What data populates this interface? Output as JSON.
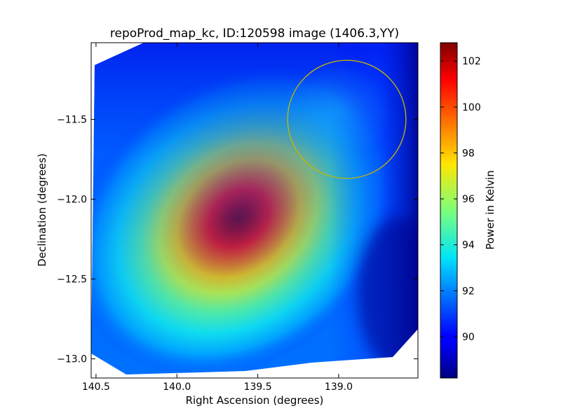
{
  "chart_data": {
    "type": "heatmap",
    "title": "repoProd_map_kc, ID:120598 image (1406.3,YY)",
    "xlabel": "Right Ascension (degrees)",
    "ylabel": "Declination (degrees)",
    "xlim": [
      140.53,
      138.51
    ],
    "ylim": [
      -13.12,
      -11.02
    ],
    "x_ticks": [
      {
        "value": 140.5,
        "label": "140.5"
      },
      {
        "value": 140.0,
        "label": "140.0"
      },
      {
        "value": 139.5,
        "label": "139.5"
      },
      {
        "value": 139.0,
        "label": "139.0"
      }
    ],
    "y_ticks": [
      {
        "value": -11.5,
        "label": "−11.5"
      },
      {
        "value": -12.0,
        "label": "−12.0"
      },
      {
        "value": -12.5,
        "label": "−12.5"
      },
      {
        "value": -13.0,
        "label": "−13.0"
      }
    ],
    "colorbar": {
      "label": "Power in Kelvin",
      "range": [
        88.2,
        102.8
      ],
      "ticks": [
        {
          "value": 90,
          "label": "90"
        },
        {
          "value": 92,
          "label": "92"
        },
        {
          "value": 94,
          "label": "94"
        },
        {
          "value": 96,
          "label": "96"
        },
        {
          "value": 98,
          "label": "98"
        },
        {
          "value": 100,
          "label": "100"
        },
        {
          "value": 102,
          "label": "102"
        }
      ]
    },
    "peak": {
      "ra": 139.58,
      "dec": -12.15,
      "value": 102.8
    },
    "circle": {
      "ra": 138.95,
      "dec": -11.5,
      "radius_deg": 0.37,
      "color": "#c8b400"
    },
    "colormap": "jet",
    "map_samples": [
      {
        "ra": 139.58,
        "dec": -12.15,
        "value": 102.5
      },
      {
        "ra": 140.2,
        "dec": -12.6,
        "value": 96
      },
      {
        "ra": 140.3,
        "dec": -11.2,
        "value": 90
      },
      {
        "ra": 138.6,
        "dec": -12.6,
        "value": 88.5
      },
      {
        "ra": 139.0,
        "dec": -11.5,
        "value": 92.5
      },
      {
        "ra": 140.3,
        "dec": -12.9,
        "value": 94.5
      }
    ]
  }
}
